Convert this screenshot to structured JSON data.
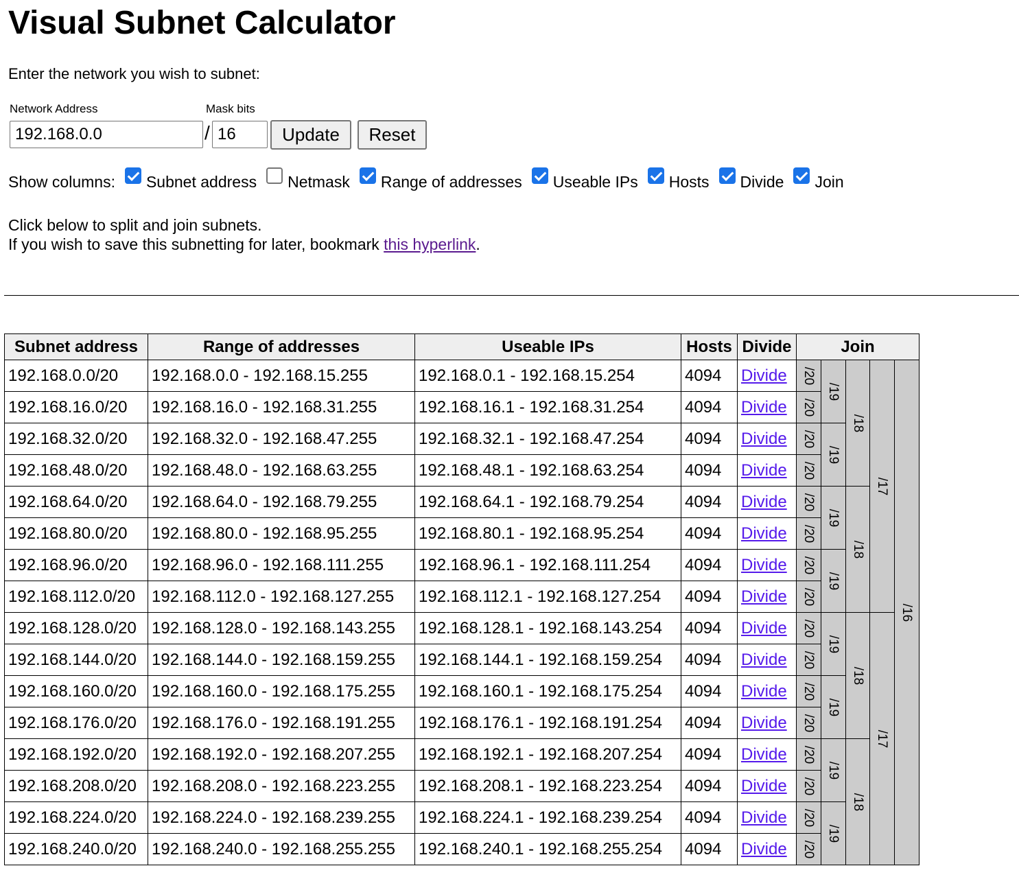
{
  "title": "Visual Subnet Calculator",
  "intro": "Enter the network you wish to subnet:",
  "form": {
    "network_label": "Network Address",
    "network_value": "192.168.0.0",
    "slash": "/",
    "mask_label": "Mask bits",
    "mask_value": "16",
    "update_label": "Update",
    "reset_label": "Reset"
  },
  "columns": {
    "label": "Show columns:",
    "options": [
      {
        "label": "Subnet address",
        "checked": true
      },
      {
        "label": "Netmask",
        "checked": false
      },
      {
        "label": "Range of addresses",
        "checked": true
      },
      {
        "label": "Useable IPs",
        "checked": true
      },
      {
        "label": "Hosts",
        "checked": true
      },
      {
        "label": "Divide",
        "checked": true
      },
      {
        "label": "Join",
        "checked": true
      }
    ]
  },
  "help": {
    "line1": "Click below to split and join subnets.",
    "line2_prefix": "If you wish to save this subnetting for later, bookmark ",
    "link_text": "this hyperlink",
    "line2_suffix": "."
  },
  "table": {
    "headers": {
      "subnet": "Subnet address",
      "range": "Range of addresses",
      "useable": "Useable IPs",
      "hosts": "Hosts",
      "divide": "Divide",
      "join": "Join"
    },
    "divide_label": "Divide",
    "rows": [
      {
        "subnet": "192.168.0.0/20",
        "range": "192.168.0.0 - 192.168.15.255",
        "useable": "192.168.0.1 - 192.168.15.254",
        "hosts": "4094"
      },
      {
        "subnet": "192.168.16.0/20",
        "range": "192.168.16.0 - 192.168.31.255",
        "useable": "192.168.16.1 - 192.168.31.254",
        "hosts": "4094"
      },
      {
        "subnet": "192.168.32.0/20",
        "range": "192.168.32.0 - 192.168.47.255",
        "useable": "192.168.32.1 - 192.168.47.254",
        "hosts": "4094"
      },
      {
        "subnet": "192.168.48.0/20",
        "range": "192.168.48.0 - 192.168.63.255",
        "useable": "192.168.48.1 - 192.168.63.254",
        "hosts": "4094"
      },
      {
        "subnet": "192.168.64.0/20",
        "range": "192.168.64.0 - 192.168.79.255",
        "useable": "192.168.64.1 - 192.168.79.254",
        "hosts": "4094"
      },
      {
        "subnet": "192.168.80.0/20",
        "range": "192.168.80.0 - 192.168.95.255",
        "useable": "192.168.80.1 - 192.168.95.254",
        "hosts": "4094"
      },
      {
        "subnet": "192.168.96.0/20",
        "range": "192.168.96.0 - 192.168.111.255",
        "useable": "192.168.96.1 - 192.168.111.254",
        "hosts": "4094"
      },
      {
        "subnet": "192.168.112.0/20",
        "range": "192.168.112.0 - 192.168.127.255",
        "useable": "192.168.112.1 - 192.168.127.254",
        "hosts": "4094"
      },
      {
        "subnet": "192.168.128.0/20",
        "range": "192.168.128.0 - 192.168.143.255",
        "useable": "192.168.128.1 - 192.168.143.254",
        "hosts": "4094"
      },
      {
        "subnet": "192.168.144.0/20",
        "range": "192.168.144.0 - 192.168.159.255",
        "useable": "192.168.144.1 - 192.168.159.254",
        "hosts": "4094"
      },
      {
        "subnet": "192.168.160.0/20",
        "range": "192.168.160.0 - 192.168.175.255",
        "useable": "192.168.160.1 - 192.168.175.254",
        "hosts": "4094"
      },
      {
        "subnet": "192.168.176.0/20",
        "range": "192.168.176.0 - 192.168.191.255",
        "useable": "192.168.176.1 - 192.168.191.254",
        "hosts": "4094"
      },
      {
        "subnet": "192.168.192.0/20",
        "range": "192.168.192.0 - 192.168.207.255",
        "useable": "192.168.192.1 - 192.168.207.254",
        "hosts": "4094"
      },
      {
        "subnet": "192.168.208.0/20",
        "range": "192.168.208.0 - 192.168.223.255",
        "useable": "192.168.208.1 - 192.168.223.254",
        "hosts": "4094"
      },
      {
        "subnet": "192.168.224.0/20",
        "range": "192.168.224.0 - 192.168.239.255",
        "useable": "192.168.224.1 - 192.168.239.254",
        "hosts": "4094"
      },
      {
        "subnet": "192.168.240.0/20",
        "range": "192.168.240.0 - 192.168.255.255",
        "useable": "192.168.240.1 - 192.168.255.254",
        "hosts": "4094"
      }
    ],
    "join_levels": [
      {
        "label": "/20",
        "span": 1
      },
      {
        "label": "/19",
        "span": 2
      },
      {
        "label": "/18",
        "span": 4
      },
      {
        "label": "/17",
        "span": 8
      },
      {
        "label": "/16",
        "span": 16
      }
    ]
  }
}
